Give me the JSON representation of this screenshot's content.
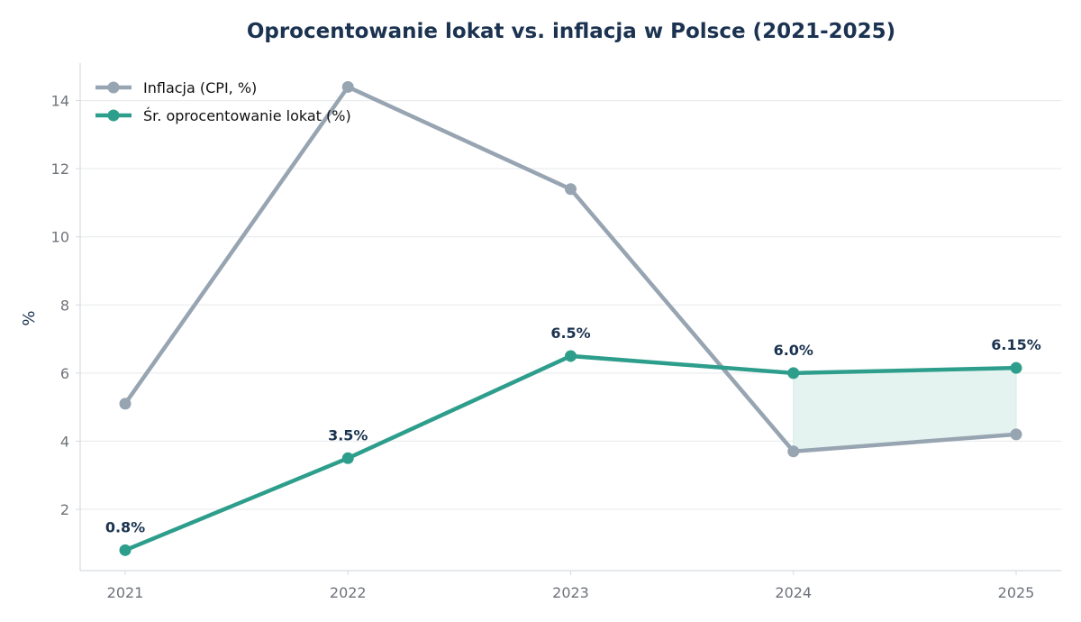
{
  "chart_data": {
    "type": "line",
    "title": "Oprocentowanie lokat vs. inflacja w Polsce (2021-2025)",
    "xlabel": "",
    "ylabel": "%",
    "categories": [
      "2021",
      "2022",
      "2023",
      "2024",
      "2025"
    ],
    "ylim": [
      0.2,
      15.1
    ],
    "yticks": [
      2,
      4,
      6,
      8,
      10,
      12,
      14
    ],
    "grid": true,
    "legend_position": "top-left",
    "series": [
      {
        "name": "Inflacja (CPI, %)",
        "values": [
          5.1,
          14.4,
          11.4,
          3.7,
          4.2
        ],
        "color": "#97a4b1"
      },
      {
        "name": "Śr. oprocentowanie lokat (%)",
        "values": [
          0.8,
          3.5,
          6.5,
          6.0,
          6.15
        ],
        "color": "#2e9e8c"
      }
    ],
    "data_labels": [
      "0.8%",
      "3.5%",
      "6.5%",
      "6.0%",
      "6.15%"
    ],
    "shaded_region": {
      "from": "2024",
      "to": "2025",
      "fill": "#e4f3f0"
    }
  }
}
